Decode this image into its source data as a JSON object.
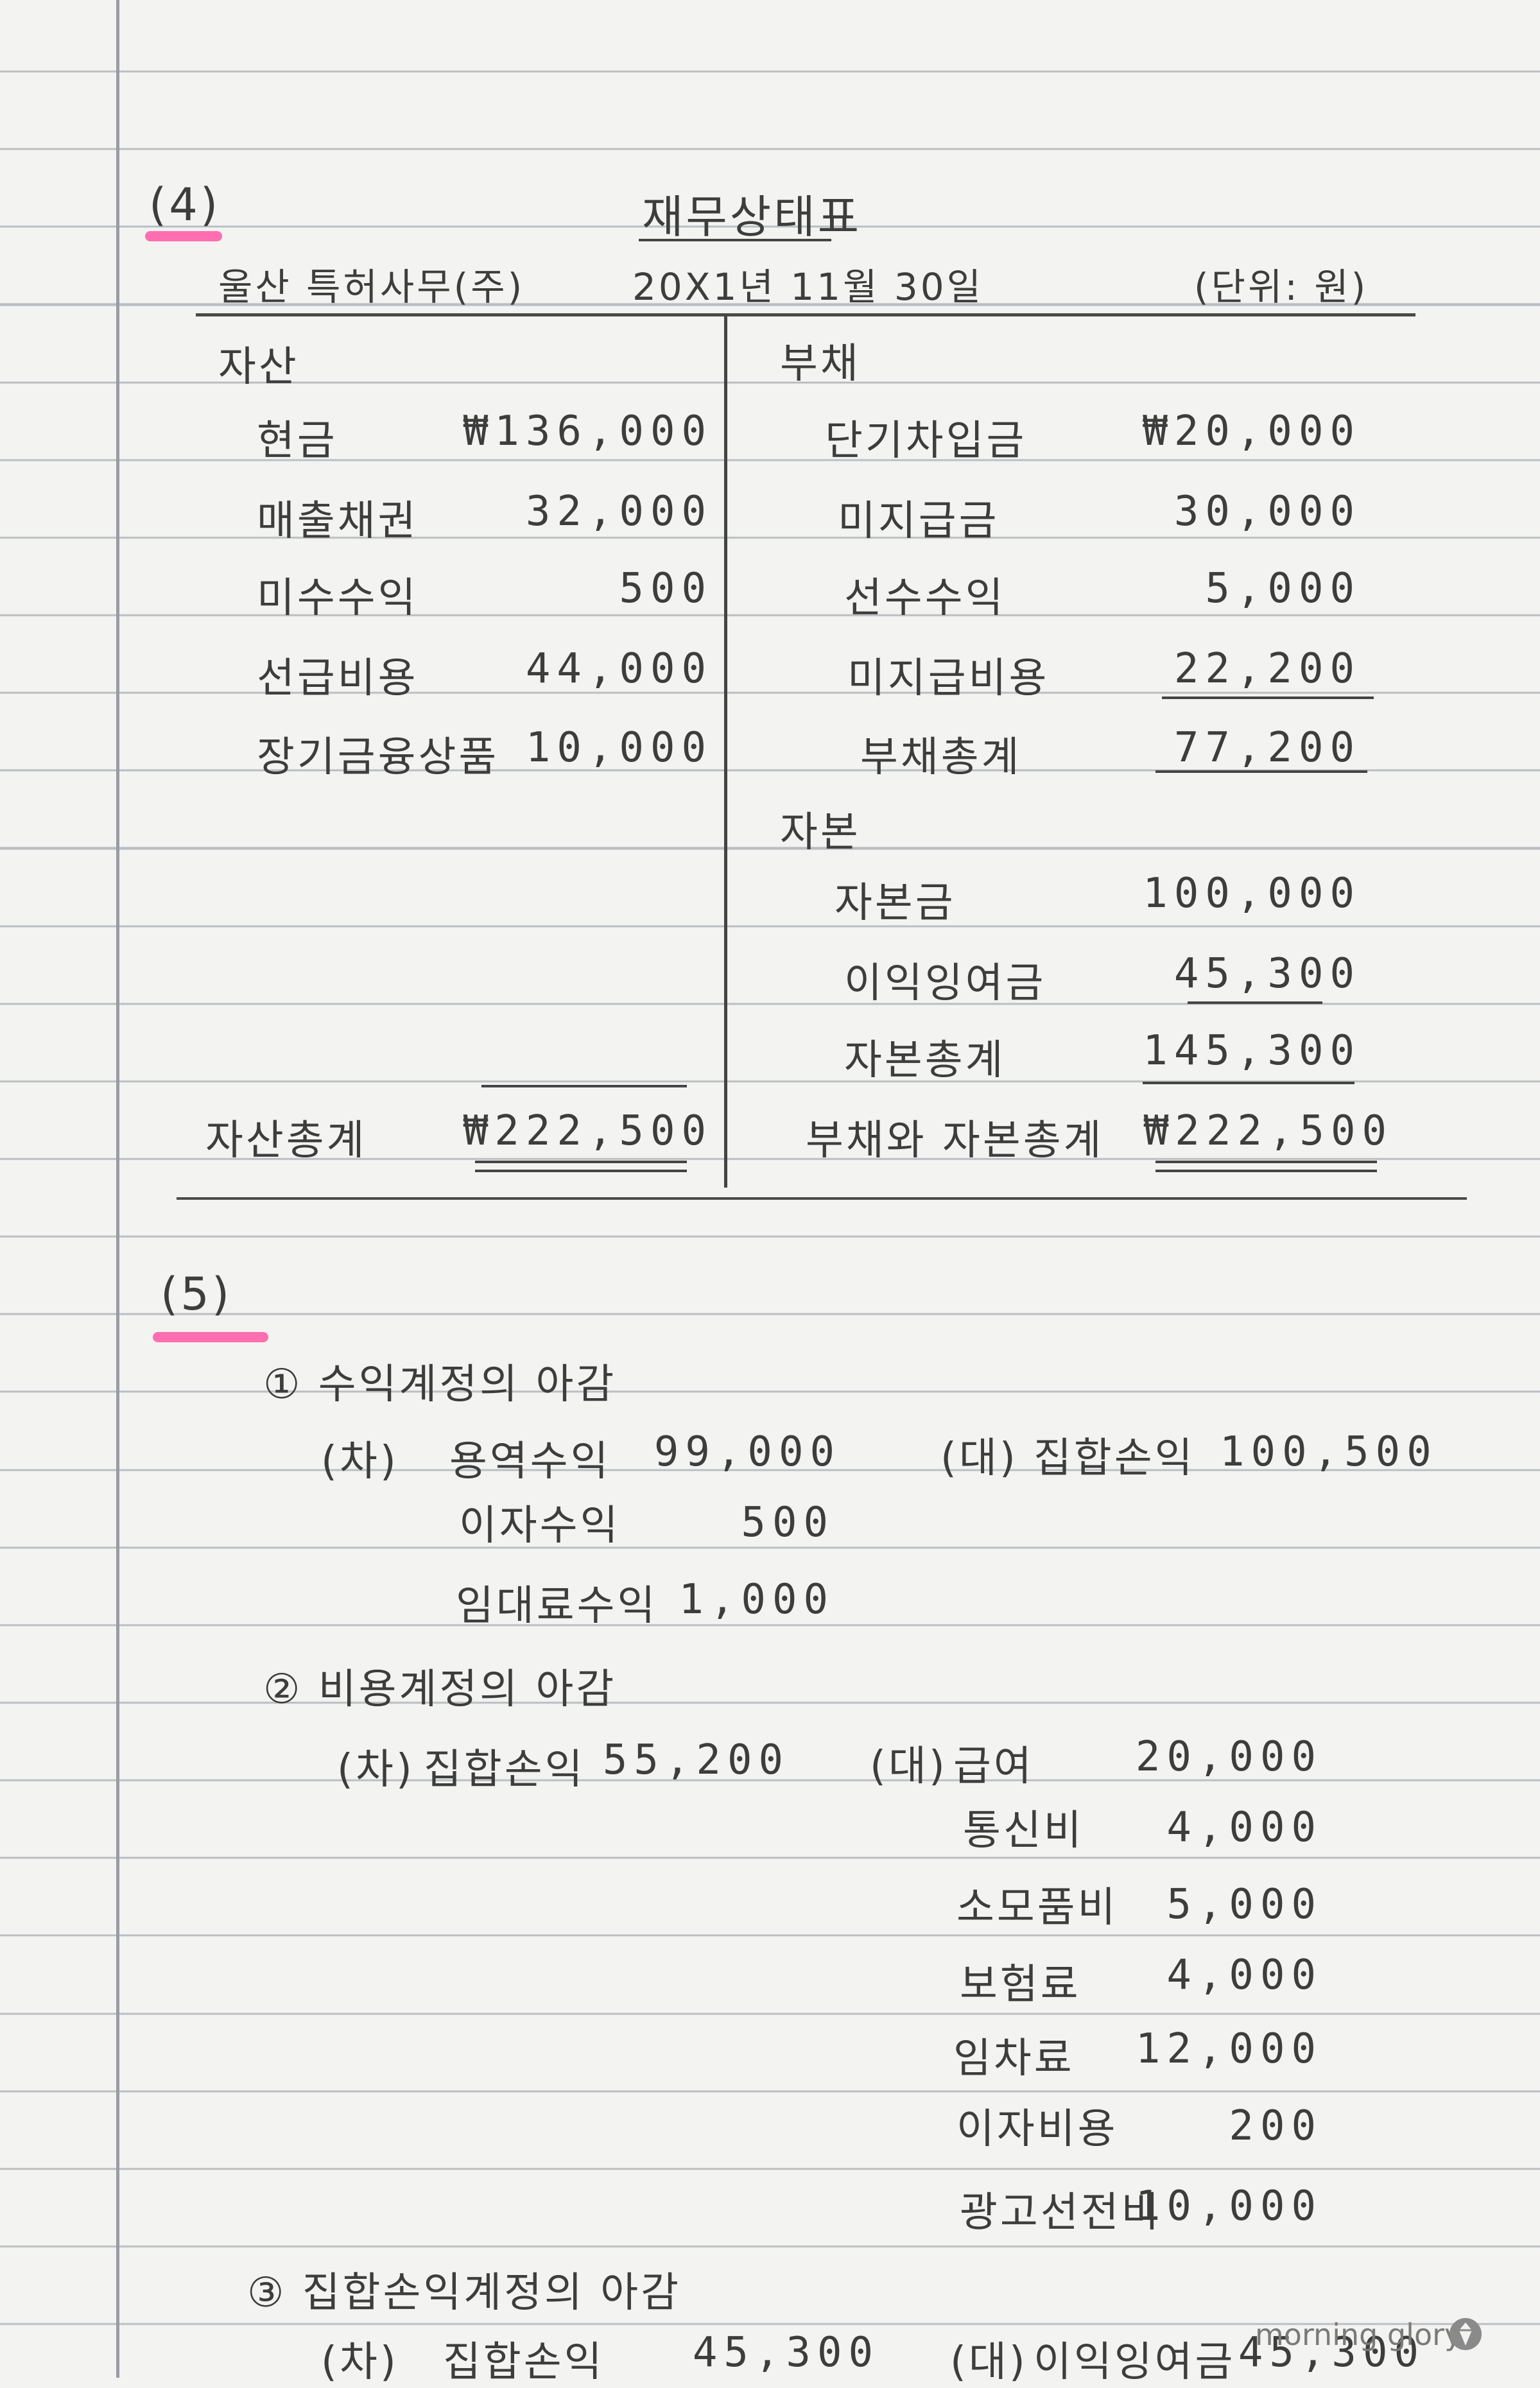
{
  "watermark": "morning glory",
  "part4": {
    "number": "(4)",
    "title": "재무상태표",
    "company": "울산 특허사무(주)",
    "date": "20X1년 11월 30일",
    "unit": "(단위: 원)",
    "assets_header": "자산",
    "liab_header": "부채",
    "equity_header": "자본",
    "assets": [
      {
        "label": "현금",
        "value": "₩136,000"
      },
      {
        "label": "매출채권",
        "value": "32,000"
      },
      {
        "label": "미수수익",
        "value": "500"
      },
      {
        "label": "선급비용",
        "value": "44,000"
      },
      {
        "label": "장기금융상품",
        "value": "10,000"
      }
    ],
    "liabilities": [
      {
        "label": "단기차입금",
        "value": "₩20,000"
      },
      {
        "label": "미지급금",
        "value": "30,000"
      },
      {
        "label": "선수수익",
        "value": "5,000"
      },
      {
        "label": "미지급비용",
        "value": "22,200"
      }
    ],
    "liab_total": {
      "label": "부채총계",
      "value": "77,200"
    },
    "equity": [
      {
        "label": "자본금",
        "value": "100,000"
      },
      {
        "label": "이익잉여금",
        "value": "45,300"
      }
    ],
    "equity_total": {
      "label": "자본총계",
      "value": "145,300"
    },
    "asset_total": {
      "label": "자산총계",
      "value": "₩222,500"
    },
    "le_total": {
      "label": "부채와 자본총계",
      "value": "₩222,500"
    }
  },
  "part5": {
    "number": "(5)",
    "step1": {
      "title": "① 수익계정의 아감",
      "dr": "(차)",
      "cr": "(대)",
      "debits": [
        {
          "label": "용역수익",
          "value": "99,000"
        },
        {
          "label": "이자수익",
          "value": "500"
        },
        {
          "label": "임대료수익",
          "value": "1,000"
        }
      ],
      "credit": {
        "label": "집합손익",
        "value": "100,500"
      }
    },
    "step2": {
      "title": "② 비용계정의 아감",
      "dr": "(차)",
      "cr": "(대)",
      "debit": {
        "label": "집합손익",
        "value": "55,200"
      },
      "credits": [
        {
          "label": "급여",
          "value": "20,000"
        },
        {
          "label": "통신비",
          "value": "4,000"
        },
        {
          "label": "소모품비",
          "value": "5,000"
        },
        {
          "label": "보험료",
          "value": "4,000"
        },
        {
          "label": "임차료",
          "value": "12,000"
        },
        {
          "label": "이자비용",
          "value": "200"
        },
        {
          "label": "광고선전비",
          "value": "10,000"
        }
      ]
    },
    "step3": {
      "title": "③ 집합손익계정의 아감",
      "dr": "(차)",
      "cr": "(대)",
      "debit": {
        "label": "집합손익",
        "value": "45,300"
      },
      "credit": {
        "label": "이익잉여금",
        "value": "45,300"
      }
    }
  }
}
